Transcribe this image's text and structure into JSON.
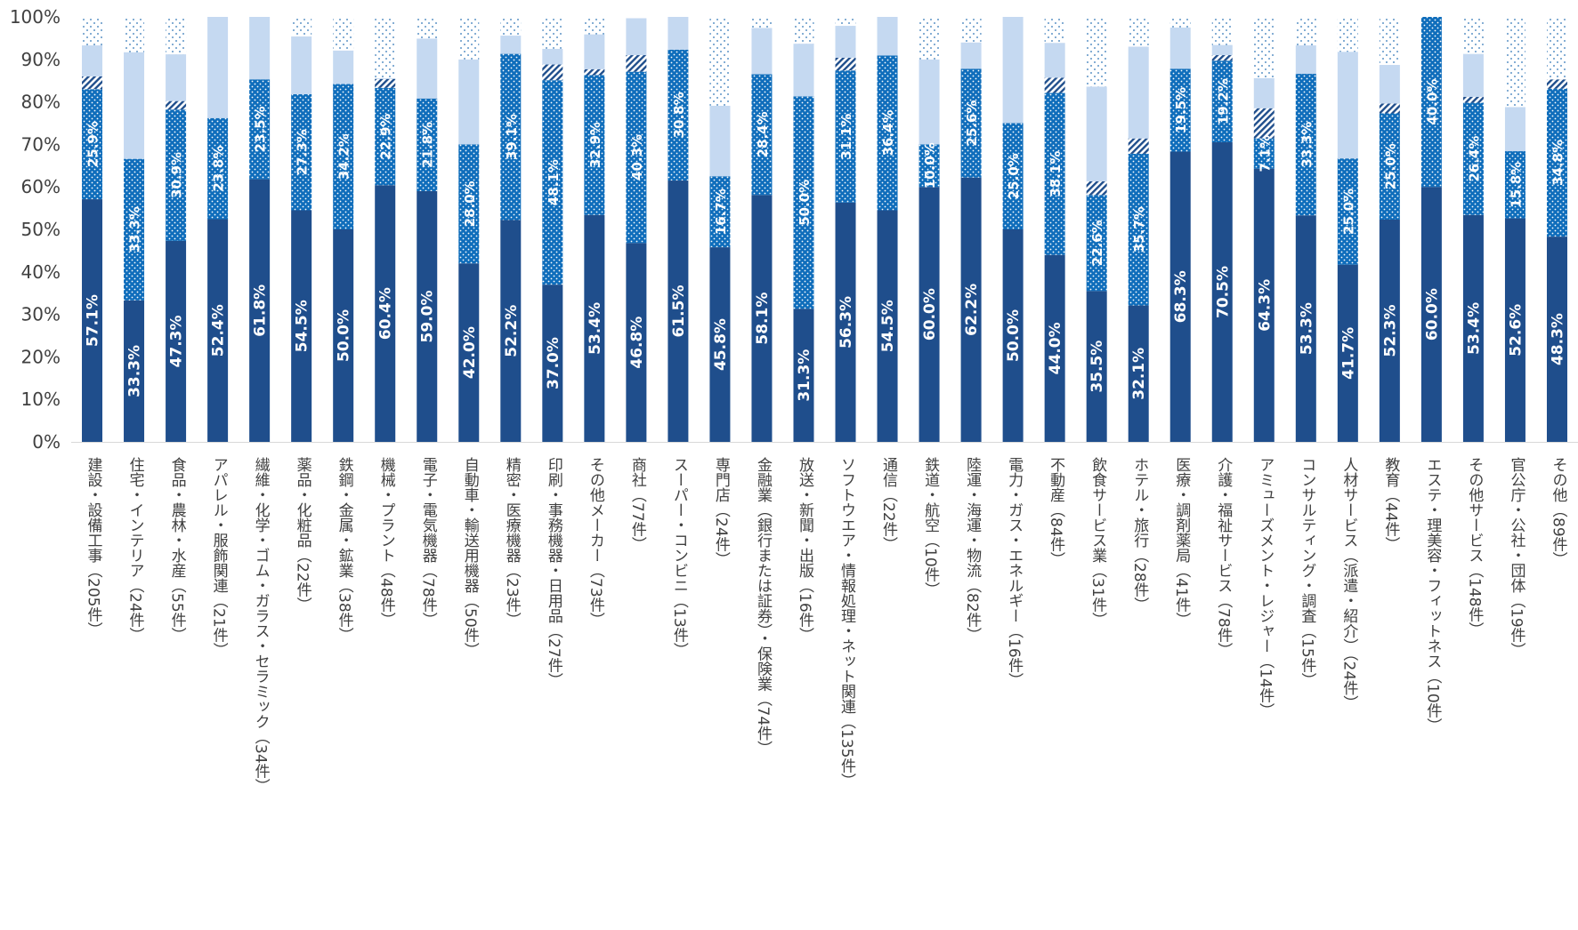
{
  "chart_data": {
    "type": "bar",
    "stacked": true,
    "orientation": "vertical",
    "ylim": [
      0,
      100
    ],
    "grid": false,
    "legend": "none",
    "yticks": [
      "0%",
      "10%",
      "20%",
      "30%",
      "40%",
      "50%",
      "60%",
      "70%",
      "80%",
      "90%",
      "100%"
    ],
    "categories": [
      "建設・設備工事（205件）",
      "住宅・インテリア（24件）",
      "食品・農林・水産（55件）",
      "アパレル・服飾関連（21件）",
      "繊維・化学・ゴム・ガラス・セラミック（34件）",
      "薬品・化粧品（22件）",
      "鉄鋼・金属・鉱業（38件）",
      "機械・プラント（48件）",
      "電子・電気機器（78件）",
      "自動車・輸送用機器（50件）",
      "精密・医療機器（23件）",
      "印刷・事務機器・日用品（27件）",
      "その他メーカー（73件）",
      "商社（77件）",
      "スーパー・コンビニ（13件）",
      "専門店（24件）",
      "金融業（銀行または証券）・保険業（74件）",
      "放送・新聞・出版（16件）",
      "ソフトウエア・情報処理・ネット関連（135件）",
      "通信（22件）",
      "鉄道・航空（10件）",
      "陸運・海運・物流（82件）",
      "電力・ガス・エネルギー（16件）",
      "不動産（84件）",
      "飲食サービス業（31件）",
      "ホテル・旅行（28件）",
      "医療・調剤薬局（41件）",
      "介護・福祉サービス（78件）",
      "アミューズメント・レジャー（14件）",
      "コンサルティング・調査（15件）",
      "人材サービス（派遣・紹介）（24件）",
      "教育（44件）",
      "エステ・理美容・フィットネス（10件）",
      "その他サービス（148件）",
      "官公庁・公社・団体（19件）",
      "その他（89件）"
    ],
    "series": [
      {
        "values": [
          57.1,
          33.3,
          47.3,
          52.4,
          61.8,
          54.5,
          50.0,
          60.4,
          59.0,
          42.0,
          52.2,
          37.0,
          53.4,
          46.8,
          61.5,
          45.8,
          58.1,
          31.3,
          56.3,
          54.5,
          60.0,
          62.2,
          50.0,
          44.0,
          35.5,
          32.1,
          68.3,
          70.5,
          64.3,
          53.3,
          41.7,
          52.3,
          60.0,
          53.4,
          52.6,
          48.3
        ],
        "labels": [
          "57.1%",
          "33.3%",
          "47.3%",
          "52.4%",
          "61.8%",
          "54.5%",
          "50.0%",
          "60.4%",
          "59.0%",
          "42.0%",
          "52.2%",
          "37.0%",
          "53.4%",
          "46.8%",
          "61.5%",
          "45.8%",
          "58.1%",
          "31.3%",
          "56.3%",
          "54.5%",
          "60.0%",
          "62.2%",
          "50.0%",
          "44.0%",
          "35.5%",
          "32.1%",
          "68.3%",
          "70.5%",
          "64.3%",
          "53.3%",
          "41.7%",
          "52.3%",
          "60.0%",
          "53.4%",
          "52.6%",
          "48.3%"
        ],
        "color": "#1f4e8c",
        "pattern": "solid"
      },
      {
        "values": [
          25.9,
          33.3,
          30.9,
          23.8,
          23.5,
          27.3,
          34.2,
          22.9,
          21.8,
          28.0,
          39.1,
          48.1,
          32.9,
          40.3,
          30.8,
          16.7,
          28.4,
          50.0,
          31.1,
          36.4,
          10.0,
          25.6,
          25.0,
          38.1,
          22.6,
          35.7,
          19.5,
          19.2,
          7.1,
          33.3,
          25.0,
          25.0,
          40.0,
          26.4,
          15.8,
          34.8
        ],
        "labels": [
          "25.9%",
          "33.3%",
          "30.9%",
          "23.8%",
          "23.5%",
          "27.3%",
          "34.2%",
          "22.9%",
          "21.8%",
          "28.0%",
          "39.1%",
          "48.1%",
          "32.9%",
          "40.3%",
          "30.8%",
          "16.7%",
          "28.4%",
          "50.0%",
          "31.1%",
          "36.4%",
          "10.0%",
          "25.6%",
          "25.0%",
          "38.1%",
          "22.6%",
          "35.7%",
          "19.5%",
          "19.2%",
          "7.1%",
          "33.3%",
          "25.0%",
          "25.0%",
          "40.0%",
          "26.4%",
          "15.8%",
          "34.8%"
        ],
        "color": "#0f6dbb",
        "pattern": "dotted"
      },
      {
        "values": [
          3.0,
          0,
          2.0,
          0,
          0,
          0,
          0,
          2.1,
          0,
          0,
          0,
          3.7,
          1.4,
          3.9,
          0,
          0,
          0,
          0,
          3.0,
          0,
          0,
          0,
          0,
          3.6,
          3.2,
          3.6,
          0,
          1.3,
          7.1,
          0,
          0,
          2.3,
          0,
          1.4,
          0,
          2.2
        ],
        "color": "#1f4e8c",
        "pattern": "diagonal-hatch"
      },
      {
        "values": [
          7.3,
          25.1,
          11.0,
          23.8,
          14.7,
          13.6,
          7.9,
          0.2,
          14.1,
          20.0,
          4.3,
          3.7,
          8.2,
          8.7,
          7.7,
          16.6,
          10.9,
          12.4,
          7.5,
          9.1,
          20.0,
          6.2,
          25.0,
          8.2,
          22.3,
          21.6,
          9.7,
          2.4,
          7.1,
          6.7,
          25.1,
          9.1,
          0,
          10.1,
          10.4,
          0
        ],
        "color": "#c5d9f1",
        "pattern": "solid"
      },
      {
        "values": [
          6.7,
          8.3,
          8.8,
          0,
          0,
          4.6,
          7.9,
          14.4,
          5.1,
          10.0,
          4.4,
          7.5,
          4.1,
          0.3,
          0,
          20.9,
          2.6,
          6.3,
          2.1,
          0,
          10.0,
          6.0,
          0,
          6.1,
          16.4,
          7.0,
          2.5,
          6.6,
          14.4,
          6.7,
          8.2,
          11.3,
          0,
          10.1,
          21.2,
          14.7
        ],
        "color": "#2e75b6",
        "pattern": "sparse-dots"
      }
    ]
  }
}
